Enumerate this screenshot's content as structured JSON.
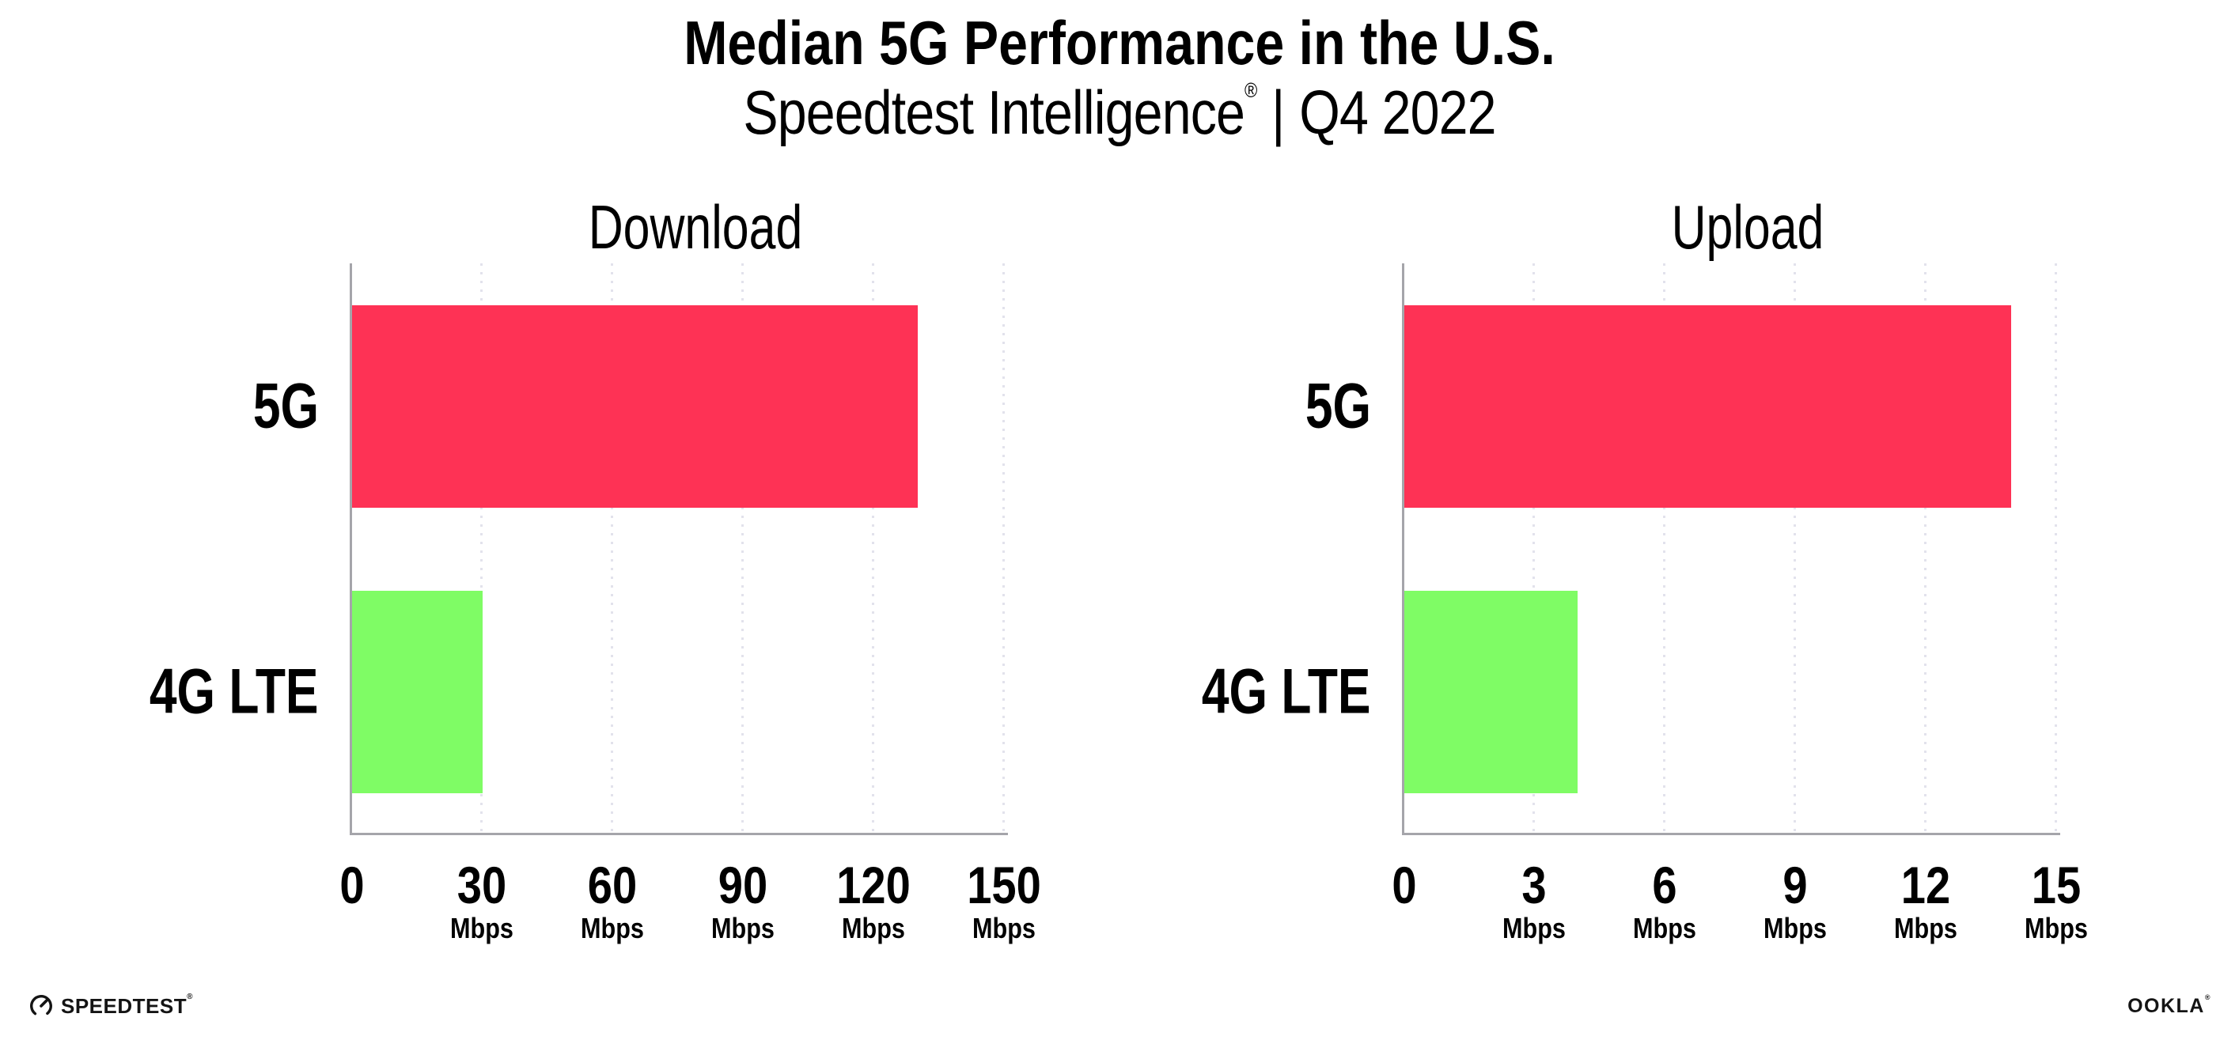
{
  "header": {
    "title": "Median 5G Performance in the U.S.",
    "subtitle_brand": "Speedtest Intelligence",
    "subtitle_registered": "®",
    "subtitle_separator": "|",
    "subtitle_period": "Q4 2022"
  },
  "chart_data": [
    {
      "type": "bar",
      "orientation": "horizontal",
      "title": "Download",
      "categories": [
        "5G",
        "4G LTE"
      ],
      "values": [
        130,
        30
      ],
      "unit": "Mbps",
      "xlim": [
        0,
        150
      ],
      "xticks": [
        0,
        30,
        60,
        90,
        120,
        150
      ],
      "tick_labels": [
        {
          "num": "0",
          "unit": ""
        },
        {
          "num": "30",
          "unit": "Mbps"
        },
        {
          "num": "60",
          "unit": "Mbps"
        },
        {
          "num": "90",
          "unit": "Mbps"
        },
        {
          "num": "120",
          "unit": "Mbps"
        },
        {
          "num": "150",
          "unit": "Mbps"
        }
      ],
      "bar_colors": [
        "#fe3255",
        "#7ffc65"
      ],
      "gridlines": "dotted-vertical",
      "legend": "none"
    },
    {
      "type": "bar",
      "orientation": "horizontal",
      "title": "Upload",
      "categories": [
        "5G",
        "4G LTE"
      ],
      "values": [
        14,
        4
      ],
      "unit": "Mbps",
      "xlim": [
        0,
        15
      ],
      "xticks": [
        0,
        3,
        6,
        9,
        12,
        15
      ],
      "tick_labels": [
        {
          "num": "0",
          "unit": ""
        },
        {
          "num": "3",
          "unit": "Mbps"
        },
        {
          "num": "6",
          "unit": "Mbps"
        },
        {
          "num": "9",
          "unit": "Mbps"
        },
        {
          "num": "12",
          "unit": "Mbps"
        },
        {
          "num": "15",
          "unit": "Mbps"
        }
      ],
      "bar_colors": [
        "#fe3255",
        "#7ffc65"
      ],
      "gridlines": "dotted-vertical",
      "legend": "none"
    }
  ],
  "footer": {
    "speedtest_label": "SPEEDTEST",
    "speedtest_registered": "®",
    "ookla_label": "OOKLA",
    "ookla_registered": "®"
  },
  "colors": {
    "bar_5g": "#fe3255",
    "bar_4g_lte": "#7ffc65",
    "axis": "#a5a5aa",
    "gridline_dots": "#e2e2ec",
    "text": "#000000",
    "background": "#ffffff"
  }
}
